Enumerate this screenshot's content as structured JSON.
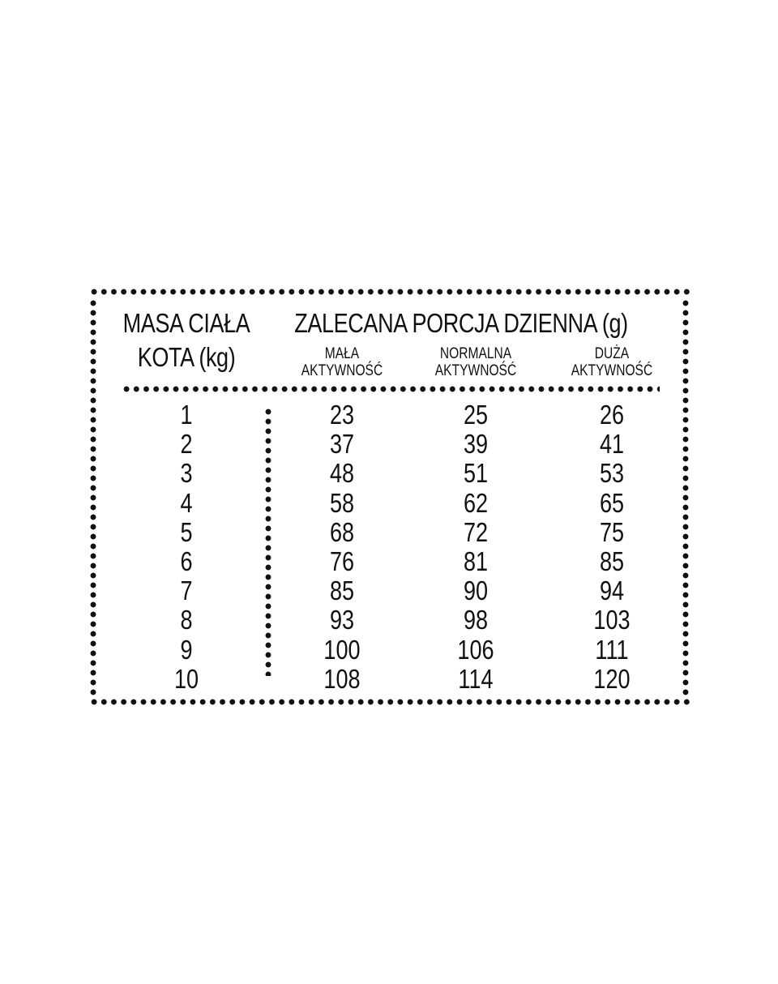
{
  "table": {
    "header_weight_line1": "MASA CIAŁA",
    "header_weight_line2": "KOTA (kg)",
    "header_portion": "ZALECANA PORCJA DZIENNA (g)",
    "columns": [
      {
        "line1": "MAŁA",
        "line2": "AKTYWNOŚĆ"
      },
      {
        "line1": "NORMALNA",
        "line2": "AKTYWNOŚĆ"
      },
      {
        "line1": "DUŻA",
        "line2": "AKTYWNOŚĆ"
      }
    ],
    "rows": [
      [
        "1",
        "23",
        "25",
        "26"
      ],
      [
        "2",
        "37",
        "39",
        "41"
      ],
      [
        "3",
        "48",
        "51",
        "53"
      ],
      [
        "4",
        "58",
        "62",
        "65"
      ],
      [
        "5",
        "68",
        "72",
        "75"
      ],
      [
        "6",
        "76",
        "81",
        "85"
      ],
      [
        "7",
        "85",
        "90",
        "94"
      ],
      [
        "8",
        "93",
        "98",
        "103"
      ],
      [
        "9",
        "100",
        "106",
        "111"
      ],
      [
        "10",
        "108",
        "114",
        "120"
      ]
    ]
  }
}
